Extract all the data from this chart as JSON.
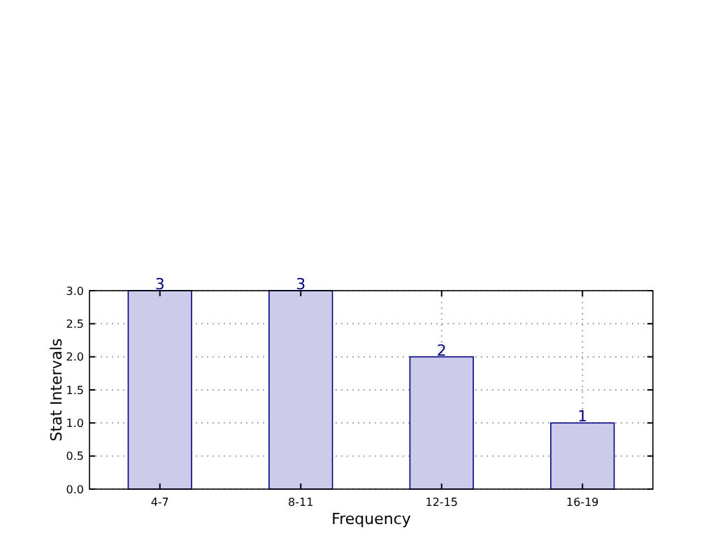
{
  "chart_data": {
    "type": "bar",
    "xlabel": "Frequency",
    "ylabel": "Stat Intervals",
    "categories": [
      "4-7",
      "8-11",
      "12-15",
      "16-19"
    ],
    "values": [
      3,
      3,
      2,
      1
    ],
    "color": "#ccccea",
    "ylim": [
      0,
      3
    ],
    "yticks": [
      {
        "value": 0,
        "label": "0.0"
      },
      {
        "value": 0.5,
        "label": "0.5"
      },
      {
        "value": 1,
        "label": "1.0"
      },
      {
        "value": 1.5,
        "label": "1.5"
      },
      {
        "value": 2,
        "label": "2.0"
      },
      {
        "value": 2.5,
        "label": "2.5"
      },
      {
        "value": 3,
        "label": "3.0"
      }
    ],
    "grid": true,
    "data_labels": true
  }
}
